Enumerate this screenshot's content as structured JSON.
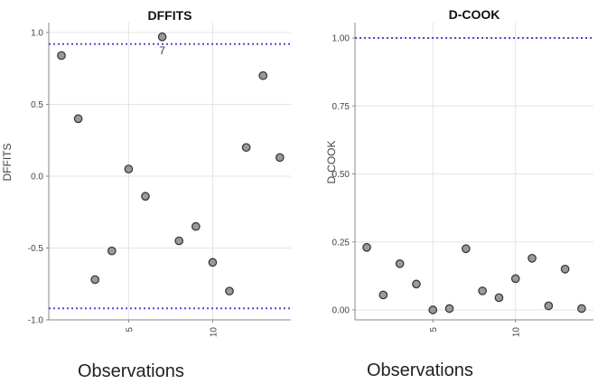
{
  "chart_data": [
    {
      "type": "scatter",
      "title": "DFFITS",
      "xlabel": "",
      "ylabel": "DFFITS",
      "caption": "Observations",
      "x_ticks": [
        5,
        10
      ],
      "y_ticks": [
        -1.0,
        -0.5,
        0.0,
        0.5,
        1.0
      ],
      "y_tick_labels": [
        "-1.0",
        "-0.5",
        "0.0",
        "0.5",
        "1.0"
      ],
      "xlim": [
        0.5,
        14.5
      ],
      "ylim": [
        -1.05,
        1.0
      ],
      "grid": true,
      "thresholds": [
        0.92,
        -0.92
      ],
      "x": [
        1,
        2,
        3,
        4,
        5,
        6,
        7,
        8,
        9,
        10,
        11,
        12,
        13,
        14
      ],
      "y": [
        0.84,
        0.4,
        -0.72,
        -0.52,
        0.05,
        -0.14,
        0.97,
        -0.45,
        -0.35,
        -0.6,
        -0.8,
        0.2,
        0.7,
        0.13
      ],
      "point_labels": [
        {
          "index": 6,
          "text": "7"
        }
      ],
      "colors": {
        "point_fill": "#9a9a9a",
        "point_edge": "#3a3a3a",
        "threshold": "#4b4bdc",
        "grid": "#e4e4e4"
      }
    },
    {
      "type": "scatter",
      "title": "D-COOK",
      "xlabel": "",
      "ylabel": "D-COOK",
      "caption": "Observations",
      "x_ticks": [
        5,
        10
      ],
      "y_ticks": [
        0.0,
        0.25,
        0.5,
        0.75,
        1.0
      ],
      "y_tick_labels": [
        "0.00",
        "0.25",
        "0.50",
        "0.75",
        "1.00"
      ],
      "xlim": [
        0.5,
        14.5
      ],
      "ylim": [
        -0.01,
        1.0
      ],
      "grid": true,
      "thresholds": [
        1.0
      ],
      "x": [
        1,
        2,
        3,
        4,
        5,
        6,
        7,
        8,
        9,
        10,
        11,
        12,
        13,
        14
      ],
      "y": [
        0.23,
        0.055,
        0.17,
        0.095,
        0.0,
        0.005,
        0.225,
        0.07,
        0.045,
        0.115,
        0.19,
        0.015,
        0.15,
        0.005
      ],
      "point_labels": [],
      "colors": {
        "point_fill": "#9a9a9a",
        "point_edge": "#3a3a3a",
        "threshold": "#4b4bdc",
        "grid": "#e4e4e4"
      }
    }
  ]
}
